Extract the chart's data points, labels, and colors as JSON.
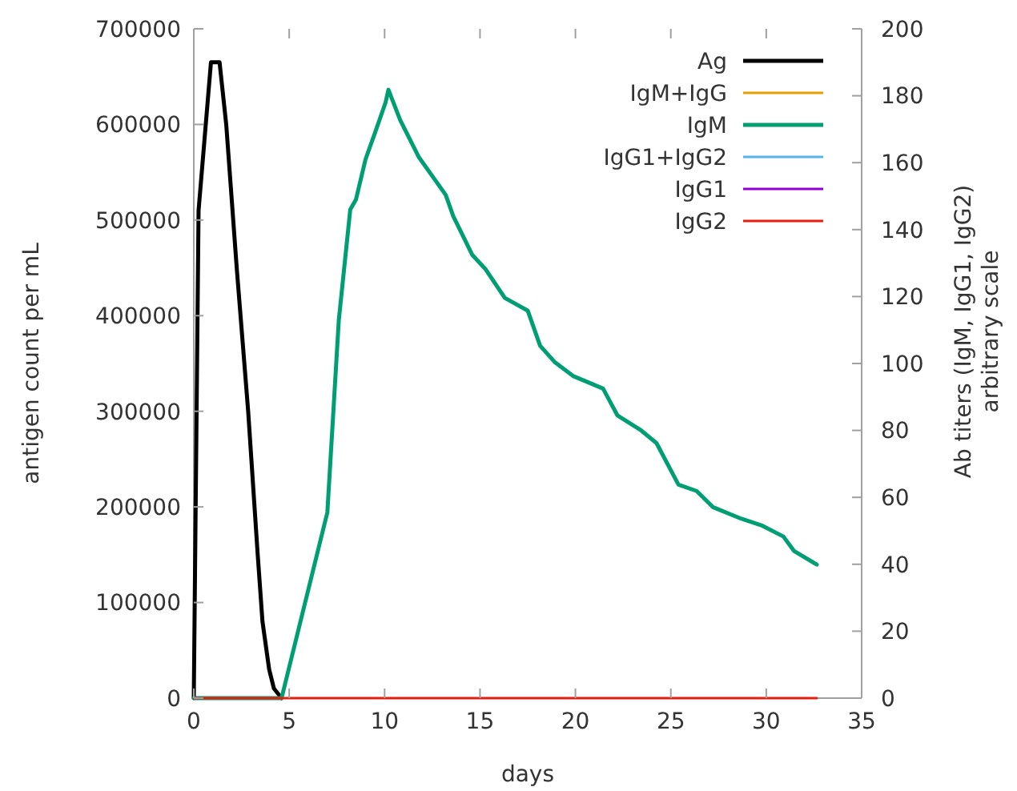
{
  "chart_data": {
    "type": "line",
    "xlabel": "days",
    "ylabel": "antigen count per mL",
    "y2label": "Ab titers (IgM, IgG1, IgG2)\narbitrary scale",
    "xlim": [
      0,
      35
    ],
    "xticks": [
      0,
      5,
      10,
      15,
      20,
      25,
      30,
      35
    ],
    "ylim": [
      0,
      700000
    ],
    "yticks": [
      0,
      100000,
      200000,
      300000,
      400000,
      500000,
      600000,
      700000
    ],
    "y2lim": [
      0,
      200
    ],
    "y2ticks": [
      0,
      20,
      40,
      60,
      80,
      100,
      120,
      140,
      160,
      180,
      200
    ],
    "grid": false,
    "legend": "top right",
    "line_style": "solid",
    "series": [
      {
        "name": "Ag",
        "color": "#000000",
        "x": [
          0,
          0.25,
          0.9,
          1.35,
          1.7,
          2.25,
          2.85,
          3.35,
          3.6,
          3.95,
          4.2,
          4.6
        ],
        "values": [
          0,
          510000,
          665000,
          665000,
          600000,
          450000,
          300000,
          150000,
          80000,
          30000,
          10000,
          0
        ]
      },
      {
        "name": "IgM+IgG",
        "color": "#e69f00",
        "axis": "y2"
      },
      {
        "name": "IgM",
        "color": "#009e73",
        "axis": "y2",
        "x": [
          0,
          4.6,
          7.0,
          7.6,
          8.2,
          8.5,
          9,
          9.5,
          10.05,
          10.2,
          10.82,
          11.8,
          13.2,
          13.6,
          14.6,
          15.3,
          16.3,
          17.5,
          18.15,
          18.9,
          19.9,
          21.45,
          22.2,
          23.4,
          24.25,
          25.4,
          26.35,
          27.2,
          28.7,
          29.8,
          30.9,
          31.45,
          32.65
        ],
        "values": [
          0,
          0,
          55.5,
          113,
          146,
          149,
          161,
          169,
          178,
          181.8,
          172.7,
          161.6,
          150.4,
          144,
          132.4,
          128.1,
          119.6,
          115.8,
          105.3,
          100.5,
          96.2,
          92.5,
          84.5,
          80.2,
          76.2,
          63.8,
          61.9,
          57.1,
          53.6,
          51.5,
          48.3,
          44,
          39.9
        ]
      },
      {
        "name": "IgG1+IgG2",
        "color": "#56b4e9",
        "axis": "y2"
      },
      {
        "name": "IgG1",
        "color": "#9400d3",
        "axis": "y2"
      },
      {
        "name": "IgG2",
        "color": "#e51e10",
        "axis": "y2",
        "x": [
          0,
          32.65
        ],
        "values": [
          0,
          0
        ]
      }
    ]
  }
}
